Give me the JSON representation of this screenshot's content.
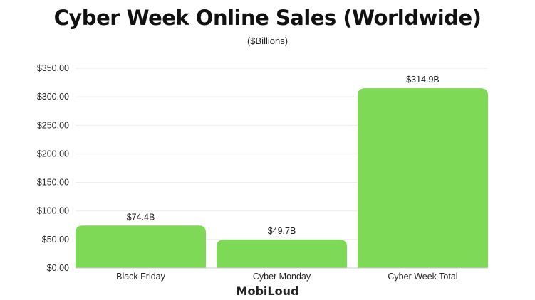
{
  "chart_data": {
    "type": "bar",
    "title": "Cyber Week Online Sales (Worldwide)",
    "subtitle": "($Billions)",
    "categories": [
      "Black Friday",
      "Cyber Monday",
      "Cyber Week Total"
    ],
    "values": [
      74.4,
      49.7,
      314.9
    ],
    "data_labels": [
      "$74.4B",
      "$49.7B",
      "$314.9B"
    ],
    "yticks": [
      0,
      50,
      100,
      150,
      200,
      250,
      300,
      350
    ],
    "ytick_labels": [
      "$0.00",
      "$50.00",
      "$100.00",
      "$150.00",
      "$200.00",
      "$250.00",
      "$300.00",
      "$350.00"
    ],
    "ylim": [
      0,
      350
    ],
    "grid": true,
    "bar_color": "#7ed957"
  },
  "branding": {
    "logo": "MobiLoud"
  }
}
